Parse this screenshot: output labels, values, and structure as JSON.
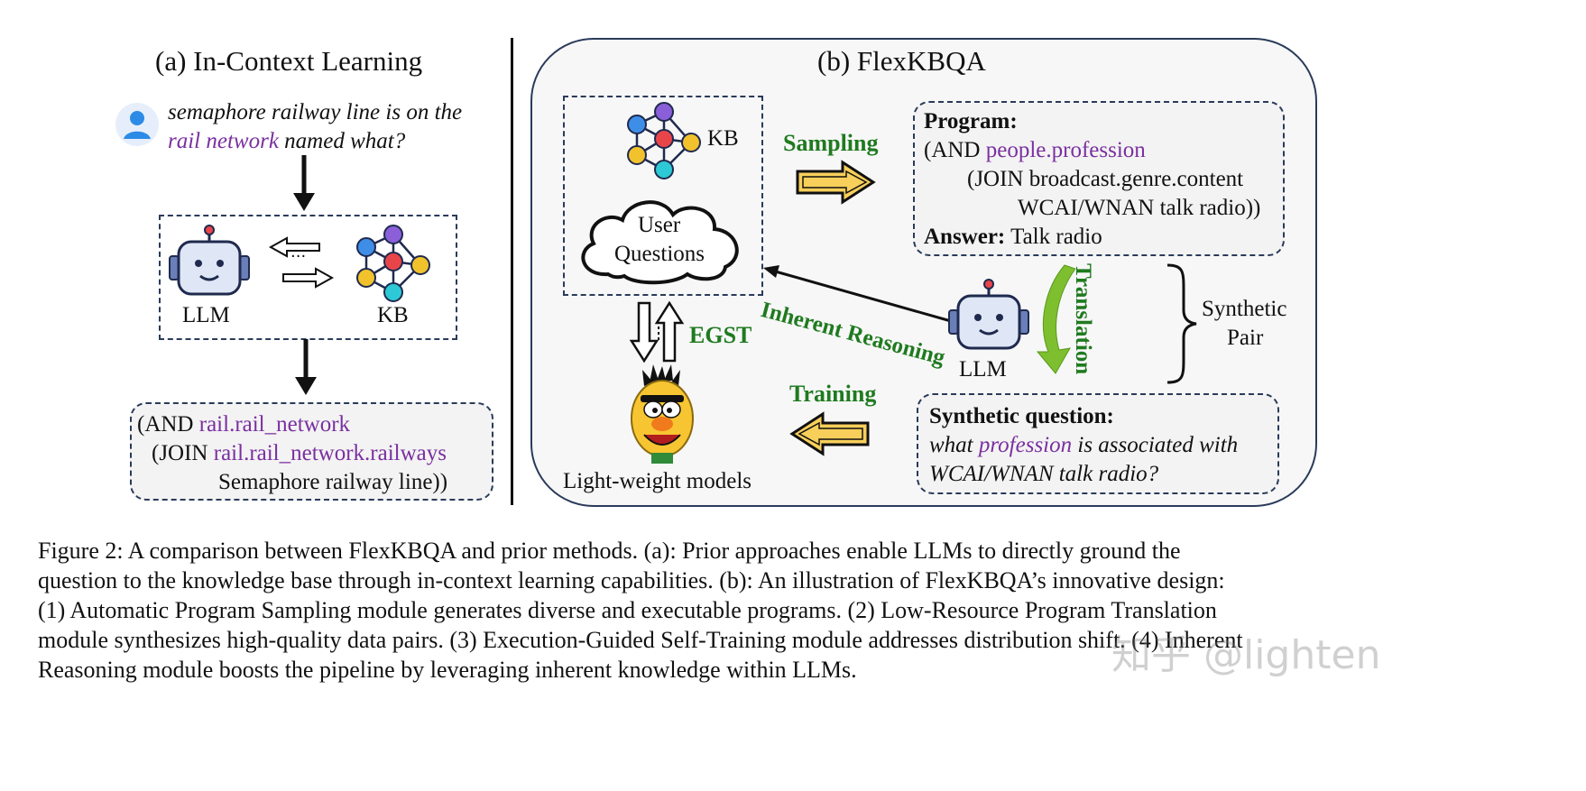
{
  "left": {
    "title": "(a) In-Context Learning",
    "question_line1": "semaphore railway line is on the",
    "question_line2_highlight": "rail network",
    "question_line2_rest": " named what?",
    "llm_label": "LLM",
    "kb_label": "KB",
    "dots": "···",
    "program": {
      "l1_prefix": "(AND ",
      "l1_highlight": "rail.rail_network",
      "l2_prefix": "(JOIN ",
      "l2_highlight": "rail.rail_network.railways",
      "l3": "Semaphore railway line))"
    }
  },
  "right": {
    "title": "(b) FlexKBQA",
    "kb_label": "KB",
    "cloud_line1": "User",
    "cloud_line2": "Questions",
    "sampling": "Sampling",
    "training": "Training",
    "egst": "EGST",
    "inherent_reasoning": "Inherent Reasoning",
    "translation": "Translation",
    "llm_label": "LLM",
    "lightweight_label": "Light-weight models",
    "synthetic_pair_line1": "Synthetic",
    "synthetic_pair_line2": "Pair",
    "program_box": {
      "heading": "Program:",
      "l1_prefix": "(AND ",
      "l1_highlight": "people.profession",
      "l2": "(JOIN broadcast.genre.content",
      "l3": "WCAI/WNAN talk radio))",
      "answer_label": "Answer:",
      "answer_value": " Talk radio"
    },
    "question_box": {
      "heading": "Synthetic question:",
      "l1_prefix": "what ",
      "l1_highlight": "profession",
      "l1_rest": " is associated with",
      "l2": "WCAI/WNAN talk radio?"
    }
  },
  "caption": {
    "lines": [
      "Figure 2: A comparison between FlexKBQA and prior methods. (a): Prior approaches enable LLMs to directly ground the",
      "question to the knowledge base through in-context learning capabilities. (b): An illustration of FlexKBQA’s innovative design:",
      "(1) Automatic Program Sampling module generates diverse and executable programs. (2) Low-Resource Program Translation",
      "module synthesizes high-quality data pairs. (3) Execution-Guided Self-Training module addresses distribution shift. (4) Inherent",
      "Reasoning module boosts the pipeline by leveraging inherent knowledge within LLMs."
    ]
  },
  "watermark": "知乎 @lighten",
  "colors": {
    "purple": "#7a2fa0",
    "green": "#1f7a1f",
    "arrow_yellow": "#f7cf5a",
    "node_blue": "#3e8ee8",
    "node_purple": "#8a5fd8",
    "node_red": "#e8454a",
    "node_yellow": "#f2c22d",
    "node_cyan": "#2ec9d6",
    "robot_face": "#dfe6f6",
    "robot_dark": "#1f2a4e"
  }
}
